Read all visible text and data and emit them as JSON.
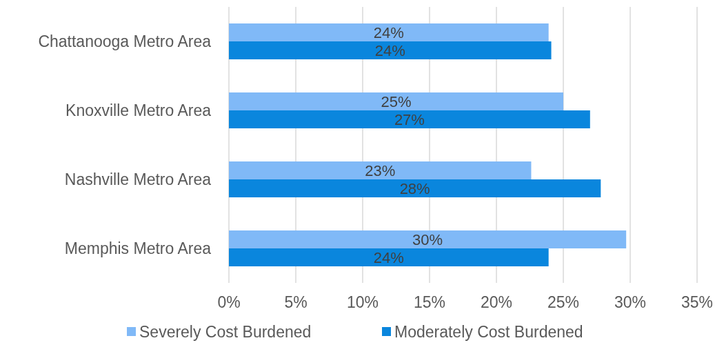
{
  "chart_data": {
    "type": "bar",
    "orientation": "horizontal",
    "categories": [
      "Chattanooga Metro Area",
      "Knoxville Metro Area",
      "Nashville Metro Area",
      "Memphis Metro Area"
    ],
    "series": [
      {
        "name": "Severely Cost Burdened",
        "color": "#80b9f7",
        "values": [
          23.9,
          25,
          22.6,
          29.7
        ],
        "value_labels": [
          "24%",
          "25%",
          "23%",
          "30%"
        ]
      },
      {
        "name": "Moderately Cost Burdened",
        "color": "#0a86dd",
        "values": [
          24.1,
          27,
          27.8,
          23.9
        ],
        "value_labels": [
          "24%",
          "27%",
          "28%",
          "24%"
        ]
      }
    ],
    "xlim": [
      0,
      35
    ],
    "xticks": [
      {
        "value": 0,
        "label": "0%"
      },
      {
        "value": 5,
        "label": "5%"
      },
      {
        "value": 10,
        "label": "10%"
      },
      {
        "value": 15,
        "label": "15%"
      },
      {
        "value": 20,
        "label": "20%"
      },
      {
        "value": 25,
        "label": "25%"
      },
      {
        "value": 30,
        "label": "30%"
      },
      {
        "value": 35,
        "label": "35%"
      }
    ],
    "grid": "x",
    "legend": "bottom"
  }
}
